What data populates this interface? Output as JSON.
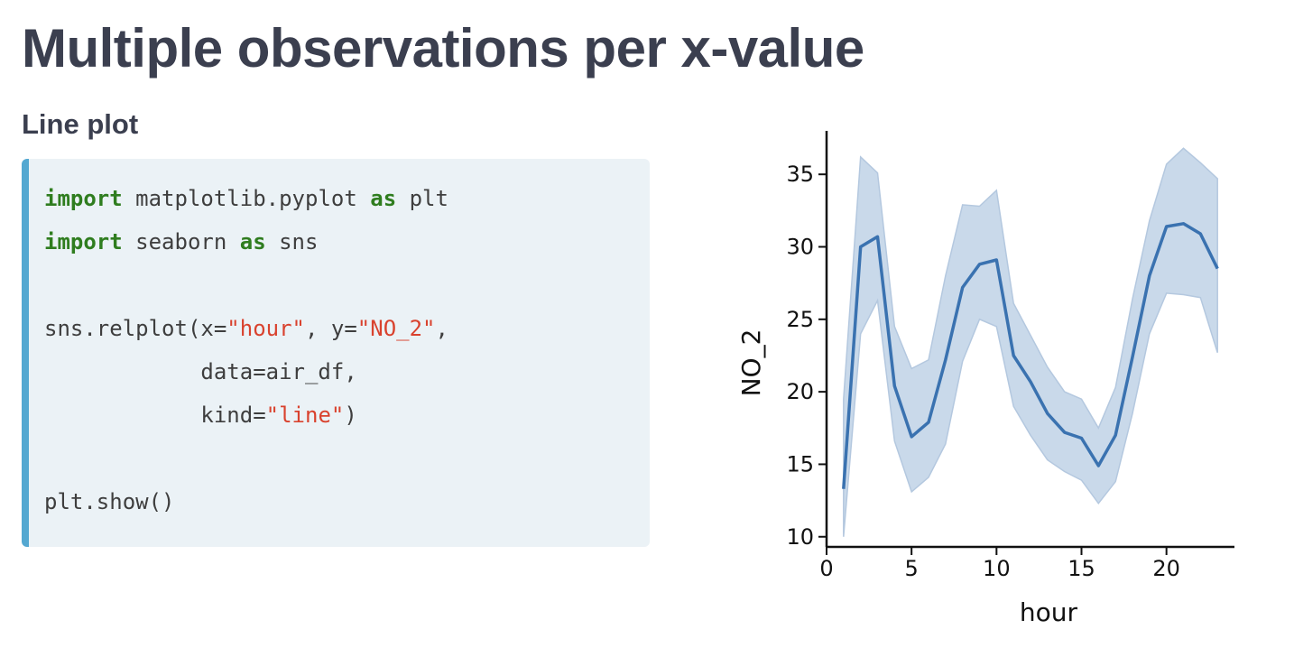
{
  "slide": {
    "title": "Multiple observations per x-value",
    "subtitle": "Line plot"
  },
  "code": {
    "lines": [
      [
        {
          "t": "import",
          "c": "kw"
        },
        {
          "t": " matplotlib.pyplot "
        },
        {
          "t": "as",
          "c": "kw"
        },
        {
          "t": " plt"
        }
      ],
      [
        {
          "t": "import",
          "c": "kw"
        },
        {
          "t": " seaborn "
        },
        {
          "t": "as",
          "c": "kw"
        },
        {
          "t": " sns"
        }
      ],
      [],
      [
        {
          "t": "sns.relplot(x="
        },
        {
          "t": "\"hour\"",
          "c": "str"
        },
        {
          "t": ", y="
        },
        {
          "t": "\"NO_2\"",
          "c": "str"
        },
        {
          "t": ","
        }
      ],
      [
        {
          "t": "            data=air_df,"
        }
      ],
      [
        {
          "t": "            kind="
        },
        {
          "t": "\"line\"",
          "c": "str"
        },
        {
          "t": ")"
        }
      ],
      [],
      [
        {
          "t": "plt.show()"
        }
      ]
    ]
  },
  "chart_data": {
    "type": "line",
    "title": "",
    "xlabel": "hour",
    "ylabel": "NO_2",
    "xlim": [
      0,
      24
    ],
    "ylim": [
      9.3,
      38
    ],
    "xticks": [
      0,
      5,
      10,
      15,
      20
    ],
    "yticks": [
      10,
      15,
      20,
      25,
      30,
      35
    ],
    "grid": false,
    "legend": "none",
    "colors": {
      "line": "#3a72b0",
      "band": "#c9d9ea",
      "band_edge": "#b4c8df",
      "axis": "#111111"
    },
    "series": [
      {
        "x": [
          1,
          2,
          3,
          4,
          5,
          6,
          7,
          8,
          9,
          10,
          11,
          12,
          13,
          14,
          15,
          16,
          17,
          18,
          19,
          20,
          21,
          22,
          23
        ],
        "y": [
          13.3,
          30.0,
          30.7,
          20.4,
          16.9,
          17.9,
          22.2,
          27.2,
          28.8,
          29.1,
          22.5,
          20.7,
          18.5,
          17.2,
          16.8,
          14.9,
          17.0,
          22.4,
          28.0,
          31.4,
          31.6,
          30.9,
          28.5
        ],
        "lower": [
          10.0,
          24.0,
          26.3,
          16.6,
          13.1,
          14.1,
          16.4,
          22.1,
          25.0,
          24.5,
          19.0,
          17.0,
          15.3,
          14.5,
          13.9,
          12.3,
          13.8,
          18.5,
          24.0,
          26.8,
          26.7,
          26.5,
          22.7
        ],
        "upper": [
          19.5,
          36.2,
          35.1,
          24.5,
          21.6,
          22.2,
          28.0,
          32.9,
          32.8,
          33.9,
          26.1,
          23.9,
          21.7,
          20.0,
          19.5,
          17.5,
          20.3,
          26.4,
          31.8,
          35.7,
          36.8,
          35.8,
          34.7
        ]
      }
    ]
  }
}
